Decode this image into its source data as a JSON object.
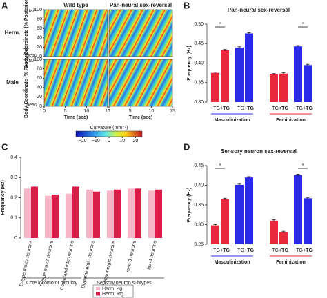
{
  "panel_labels": [
    "A",
    "B",
    "C",
    "D"
  ],
  "kymograph": {
    "column_titles": [
      "Wild type",
      "Pan-neural sex-reversal"
    ],
    "row_labels": [
      "Herm.",
      "Male"
    ],
    "row_colors": [
      "#e8283c",
      "#2a2ae8"
    ],
    "y_label": "Body Coordinate (% Posterior)",
    "y_end_labels": [
      "tail",
      "head"
    ],
    "x_label": "Time (sec)",
    "xlim": [
      0,
      15
    ],
    "xticks": [
      0,
      5,
      10,
      15
    ],
    "ylim": [
      0,
      100
    ],
    "yticks": [
      0,
      20,
      40,
      60,
      80,
      100
    ],
    "colorbar": {
      "label": "Curvature (mm⁻¹)",
      "lim": [
        -25,
        25
      ],
      "ticks": [
        {
          "value": -20,
          "label": "−20"
        },
        {
          "value": -10,
          "label": "−10"
        },
        0,
        10,
        20
      ]
    }
  },
  "chart_data": [
    {
      "type": "bar",
      "title": "Pan-neural sex-reversal",
      "y_label": "Frequency (Hz)",
      "categories": [
        "−TG",
        "+TG",
        "−TG",
        "+TG",
        "−TG",
        "+TG",
        "−TG",
        "+TG"
      ],
      "values": [
        0.375,
        0.433,
        0.44,
        0.476,
        0.371,
        0.373,
        0.443,
        0.395
      ],
      "errors": [
        0.002,
        0.002,
        0.002,
        0.002,
        0.002,
        0.002,
        0.002,
        0.002
      ],
      "colors": [
        "#e8283c",
        "#e8283c",
        "#2a2ae8",
        "#2a2ae8",
        "#e8283c",
        "#e8283c",
        "#2a2ae8",
        "#2a2ae8"
      ],
      "groups": [
        "Masculinization",
        "Feminization"
      ],
      "group_colors": [
        "#2a2ae8",
        "#e8283c"
      ],
      "annotations": [
        "*",
        "*"
      ],
      "ylim": [
        0.3,
        0.5
      ],
      "yticks": [
        {
          "value": 0.3,
          "label": "0.30"
        },
        0.35,
        {
          "value": 0.4,
          "label": "0.40"
        },
        0.45,
        {
          "value": 0.5,
          "label": "0.50"
        }
      ]
    },
    {
      "type": "groupedbar",
      "y_label": "Frequency (Hz)",
      "categories": [
        "B-type motor neurons",
        "D-type motor neurons",
        "Command interneurons",
        "Dopaminergic neurons",
        "Serotonergic neurons",
        "mec-3 neurons",
        "tax-4 neurons"
      ],
      "series": [
        {
          "name": "Herm. -tg",
          "color": "#f7b6c8",
          "values": [
            0.245,
            0.21,
            0.22,
            0.24,
            0.235,
            0.245,
            0.235
          ]
        },
        {
          "name": "Herm. +tg",
          "color": "#d81f4a",
          "values": [
            0.255,
            0.215,
            0.255,
            0.23,
            0.24,
            0.245,
            0.24
          ]
        }
      ],
      "groups": [
        "Core locomotor circuitry",
        "Sensory neuron subtypes"
      ],
      "ylim": [
        0,
        0.4
      ],
      "yticks": [
        0,
        0.1,
        0.2,
        0.3,
        0.4
      ]
    },
    {
      "type": "bar",
      "title": "Sensory neuron sex-reversal",
      "y_label": "Frequency (Hz)",
      "categories": [
        "−TG",
        "+TG",
        "−TG",
        "+TG",
        "−TG",
        "+TG",
        "−TG",
        "+TG"
      ],
      "values": [
        0.298,
        0.365,
        0.401,
        0.42,
        0.31,
        0.281,
        0.426,
        0.367
      ],
      "errors": [
        0.002,
        0.002,
        0.002,
        0.002,
        0.002,
        0.002,
        0.002,
        0.002
      ],
      "colors": [
        "#e8283c",
        "#e8283c",
        "#2a2ae8",
        "#2a2ae8",
        "#e8283c",
        "#e8283c",
        "#2a2ae8",
        "#2a2ae8"
      ],
      "groups": [
        "Masculinization",
        "Feminization"
      ],
      "group_colors": [
        "#2a2ae8",
        "#e8283c"
      ],
      "annotations": [
        "*",
        "*"
      ],
      "ylim": [
        0.25,
        0.45
      ],
      "yticks": [
        0.25,
        {
          "value": 0.3,
          "label": "0.30"
        },
        0.35,
        {
          "value": 0.4,
          "label": "0.40"
        },
        0.45
      ]
    }
  ]
}
